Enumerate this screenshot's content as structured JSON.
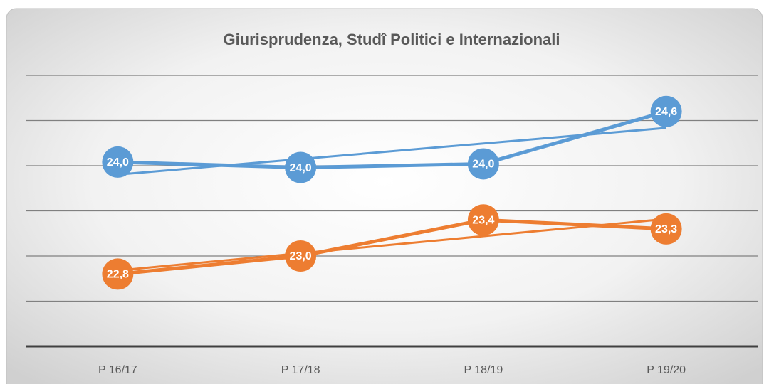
{
  "chart_data": {
    "type": "line",
    "title": "Giurisprudenza, Studî Politici e Internazionali",
    "categories": [
      "P 16/17",
      "P 17/18",
      "P 18/19",
      "P 19/20"
    ],
    "series": [
      {
        "color": "#5b9bd5",
        "values": [
          24.04,
          23.98,
          24.02,
          24.6
        ],
        "value_labels": [
          "24,0",
          "24,0",
          "24,0",
          "24,6"
        ]
      },
      {
        "color": "#ed7d31",
        "values": [
          22.8,
          23.0,
          23.4,
          23.3
        ],
        "value_labels": [
          "22,8",
          "23,0",
          "23,4",
          "23,3"
        ]
      }
    ],
    "ylim": [
      22,
      25
    ],
    "yticks": [
      22,
      22.5,
      23,
      23.5,
      24,
      24.5,
      25
    ],
    "grid": true,
    "trendline": true
  }
}
